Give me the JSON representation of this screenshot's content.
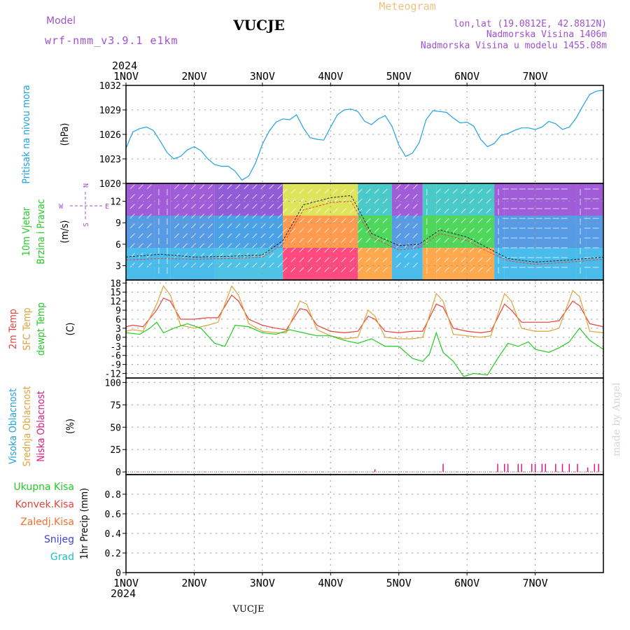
{
  "header": {
    "model_label": "Model",
    "model_name": "wrf-nmm_v3.9.1 e1km",
    "station": "VUCJE",
    "meteogram": "Meteogram",
    "lonlat": "lon,lat (19.0812E, 42.8812N)",
    "elevation": "Nadmorska Visina 1406m",
    "model_elevation": "Nadmorska Visina u modelu 1455.08m",
    "year_top": "2024",
    "year_bottom": "2024",
    "footer_station": "VUCJE",
    "credit": "made by Angel"
  },
  "colors": {
    "pressure": "#1fa2e0",
    "temp2m": "#e8423a",
    "sfc": "#dda33a",
    "dewpt": "#22cc22",
    "cloud_low": "#e0157f",
    "cloud_mid": "#f0b048",
    "cloud_high": "#1fa2e0",
    "model_text": "#a050d0",
    "meteogram_text": "#f0c080"
  },
  "wind_direction_key": {
    "n": "N",
    "s": "S",
    "w": "W",
    "e": "E"
  },
  "chart_data": [
    {
      "id": "pressure",
      "type": "line",
      "ylabel_lines": [
        "Pritisak na nivou mora",
        "(hPa)"
      ],
      "ylabel_colors": [
        "#1fa2e0",
        "#000000"
      ],
      "ylim": [
        1020,
        1032
      ],
      "yticks": [
        1020,
        1023,
        1026,
        1029,
        1032
      ],
      "x_categories": [
        "1NOV",
        "2NOV",
        "3NOV",
        "4NOV",
        "5NOV",
        "6NOV",
        "7NOV"
      ],
      "grid": true,
      "series": [
        {
          "color": "#1fa2e0",
          "x_days": [
            0,
            0.1,
            0.2,
            0.3,
            0.4,
            0.5,
            0.6,
            0.7,
            0.8,
            0.9,
            1.0,
            1.1,
            1.2,
            1.3,
            1.4,
            1.5,
            1.6,
            1.7,
            1.8,
            1.9,
            2.0,
            2.1,
            2.2,
            2.3,
            2.4,
            2.5,
            2.6,
            2.7,
            2.8,
            2.9,
            3.0,
            3.1,
            3.2,
            3.3,
            3.4,
            3.5,
            3.6,
            3.7,
            3.8,
            3.9,
            4.0,
            4.1,
            4.2,
            4.3,
            4.4,
            4.5,
            4.6,
            4.7,
            4.8,
            4.9,
            5.0,
            5.1,
            5.2,
            5.3,
            5.4,
            5.5,
            5.6,
            5.7,
            5.8,
            5.9,
            6.0,
            6.1,
            6.2,
            6.3,
            6.4,
            6.5,
            6.6,
            6.7,
            6.8,
            6.9,
            7.0
          ],
          "values": [
            1024.3,
            1026.3,
            1026.7,
            1026.9,
            1026.5,
            1025.2,
            1023.8,
            1023.0,
            1023.3,
            1024.1,
            1024.5,
            1024.0,
            1023.0,
            1022.3,
            1022.1,
            1022.1,
            1021.5,
            1020.4,
            1020.9,
            1022.5,
            1024.8,
            1026.4,
            1027.5,
            1027.9,
            1027.8,
            1028.4,
            1026.8,
            1025.6,
            1025.4,
            1025.3,
            1026.9,
            1028.4,
            1029.0,
            1029.1,
            1028.8,
            1027.6,
            1027.2,
            1027.9,
            1028.3,
            1027.0,
            1024.7,
            1023.3,
            1023.7,
            1025.0,
            1027.8,
            1028.9,
            1028.8,
            1028.7,
            1028.0,
            1027.4,
            1027.5,
            1027.0,
            1025.4,
            1024.5,
            1024.9,
            1025.9,
            1026.1,
            1026.5,
            1026.8,
            1026.8,
            1026.6,
            1026.9,
            1027.6,
            1027.3,
            1026.6,
            1026.9,
            1028.0,
            1029.5,
            1030.9,
            1031.3,
            1031.4
          ]
        }
      ]
    },
    {
      "id": "wind",
      "type": "heatmap",
      "ylabel_lines": [
        "10m Vjetar",
        "Brzina i Pravac",
        "(m/s)"
      ],
      "ylabel_colors": [
        "#22cc22",
        "#22cc22",
        "#000000"
      ],
      "ylim": [
        1,
        14.5
      ],
      "yticks": [
        3,
        6,
        9,
        12
      ],
      "grid": true,
      "segments": [
        {
          "x_start": 0,
          "x_end": 0.42,
          "dir": "NE",
          "speed_level": "low"
        },
        {
          "x_start": 0.42,
          "x_end": 0.65,
          "dir": "S",
          "speed_level": "low"
        },
        {
          "x_start": 0.65,
          "x_end": 1.3,
          "dir": "NE",
          "speed_level": "low"
        },
        {
          "x_start": 1.3,
          "x_end": 2.3,
          "dir": "NE",
          "speed_level": "low-mid"
        },
        {
          "x_start": 2.3,
          "x_end": 3.4,
          "dir": "SW",
          "speed_level": "high"
        },
        {
          "x_start": 3.4,
          "x_end": 3.9,
          "dir": "SW",
          "speed_level": "mid"
        },
        {
          "x_start": 3.9,
          "x_end": 4.35,
          "dir": "NE",
          "speed_level": "low"
        },
        {
          "x_start": 4.35,
          "x_end": 4.55,
          "dir": "S",
          "speed_level": "mid"
        },
        {
          "x_start": 4.55,
          "x_end": 5.4,
          "dir": "SW",
          "speed_level": "mid"
        },
        {
          "x_start": 5.4,
          "x_end": 5.55,
          "dir": "S",
          "speed_level": "low"
        },
        {
          "x_start": 5.55,
          "x_end": 6.6,
          "dir": "W",
          "speed_level": "low"
        },
        {
          "x_start": 6.6,
          "x_end": 6.75,
          "dir": "S",
          "speed_level": "low"
        },
        {
          "x_start": 6.75,
          "x_end": 7.0,
          "dir": "W",
          "speed_level": "low"
        }
      ],
      "speed_series": [
        {
          "color": "#222222",
          "x_days": [
            0,
            0.5,
            1,
            1.5,
            2,
            2.3,
            2.6,
            3,
            3.3,
            3.6,
            4,
            4.3,
            4.6,
            5,
            5.3,
            5.6,
            6,
            6.5,
            7
          ],
          "values": [
            4.2,
            4.6,
            4.2,
            4.3,
            4.5,
            6.5,
            11.5,
            12.5,
            12.8,
            7.5,
            5.8,
            6.0,
            8.0,
            7.0,
            5.5,
            4.0,
            3.5,
            3.8,
            4.2
          ]
        },
        {
          "color": "#e8423a",
          "x_days": [
            0,
            0.5,
            1,
            1.5,
            2,
            2.3,
            2.6,
            3,
            3.3,
            3.6,
            4,
            4.3,
            4.6,
            5,
            5.3,
            5.6,
            6,
            6.5,
            7
          ],
          "values": [
            3.8,
            4.0,
            3.9,
            4.0,
            4.2,
            6.0,
            10.8,
            11.8,
            12.0,
            7.0,
            5.2,
            5.5,
            7.5,
            6.5,
            5.0,
            3.7,
            3.2,
            3.5,
            3.9
          ]
        }
      ]
    },
    {
      "id": "temperature",
      "type": "line",
      "ylabel_lines": [
        "2m Temp",
        "SFC Temp",
        "dewpt Temp",
        "(C)"
      ],
      "ylabel_colors": [
        "#e8423a",
        "#dda33a",
        "#22cc22",
        "#000000"
      ],
      "ylim": [
        -13.5,
        19
      ],
      "yticks": [
        -12,
        -9,
        -6,
        -3,
        0,
        3,
        6,
        9,
        12,
        15,
        18
      ],
      "grid": true,
      "series": [
        {
          "name": "2m Temp",
          "color": "#e8423a",
          "x_days": [
            0,
            0.1,
            0.25,
            0.45,
            0.55,
            0.65,
            0.8,
            1.0,
            1.2,
            1.35,
            1.55,
            1.65,
            1.8,
            2.0,
            2.2,
            2.35,
            2.55,
            2.65,
            2.8,
            3.0,
            3.2,
            3.4,
            3.55,
            3.65,
            3.8,
            4.0,
            4.2,
            4.35,
            4.55,
            4.65,
            4.8,
            5.0,
            5.2,
            5.35,
            5.55,
            5.65,
            5.8,
            6.0,
            6.2,
            6.35,
            6.55,
            6.65,
            6.8,
            7.0
          ],
          "values": [
            3.5,
            4.0,
            3.5,
            9.0,
            13.0,
            12.0,
            6.0,
            6.0,
            6.5,
            6.5,
            14.0,
            12.0,
            6.0,
            4.0,
            3.0,
            2.5,
            9.5,
            9.0,
            4.0,
            2.0,
            1.5,
            2.0,
            7.0,
            6.0,
            2.0,
            1.5,
            2.0,
            2.0,
            11.0,
            10.0,
            3.0,
            2.0,
            1.5,
            2.0,
            11.0,
            9.0,
            5.0,
            5.0,
            5.0,
            5.5,
            12.0,
            10.5,
            4.5,
            3.5
          ]
        },
        {
          "name": "SFC Temp",
          "color": "#dda33a",
          "x_days": [
            0,
            0.1,
            0.25,
            0.45,
            0.55,
            0.65,
            0.8,
            1.0,
            1.2,
            1.35,
            1.55,
            1.65,
            1.8,
            2.0,
            2.2,
            2.35,
            2.55,
            2.65,
            2.8,
            3.0,
            3.2,
            3.4,
            3.55,
            3.65,
            3.8,
            4.0,
            4.2,
            4.35,
            4.55,
            4.65,
            4.8,
            5.0,
            5.2,
            5.35,
            5.55,
            5.65,
            5.8,
            6.0,
            6.2,
            6.35,
            6.55,
            6.65,
            6.8,
            7.0
          ],
          "values": [
            2.0,
            2.5,
            2.0,
            11.0,
            17.0,
            14.0,
            4.0,
            3.0,
            4.0,
            5.0,
            17.0,
            14.0,
            4.5,
            2.0,
            1.5,
            1.5,
            12.0,
            11.0,
            2.5,
            0.5,
            -0.5,
            0.0,
            9.0,
            7.0,
            0.0,
            -0.5,
            -0.5,
            0.0,
            14.5,
            12.0,
            1.0,
            0.5,
            0.0,
            0.5,
            14.5,
            12.0,
            3.0,
            2.0,
            2.0,
            3.0,
            15.5,
            13.5,
            2.0,
            1.5
          ]
        },
        {
          "name": "dewpt Temp",
          "color": "#22cc22",
          "x_days": [
            0,
            0.2,
            0.35,
            0.45,
            0.55,
            0.7,
            0.9,
            1.1,
            1.3,
            1.45,
            1.6,
            1.8,
            2.0,
            2.2,
            2.4,
            2.6,
            2.8,
            3.0,
            3.2,
            3.4,
            3.6,
            3.8,
            4.0,
            4.2,
            4.35,
            4.45,
            4.55,
            4.65,
            4.8,
            4.95,
            5.1,
            5.3,
            5.45,
            5.6,
            5.75,
            5.9,
            6.0,
            6.2,
            6.35,
            6.5,
            6.65,
            6.8,
            7.0
          ],
          "values": [
            1.5,
            1.0,
            3.0,
            5.0,
            1.5,
            3.0,
            4.5,
            3.0,
            -2.0,
            -3.0,
            4.0,
            3.5,
            1.5,
            1.0,
            2.5,
            1.5,
            0.5,
            0.5,
            -1.0,
            -2.0,
            -0.5,
            -3.0,
            -3.0,
            -7.0,
            -8.0,
            -5.5,
            1.5,
            -5.0,
            -8.0,
            -13.0,
            -12.0,
            -12.5,
            -7.0,
            -2.0,
            -3.0,
            -1.5,
            -4.0,
            -5.0,
            -3.5,
            -1.5,
            3.0,
            -1.0,
            -4.0
          ]
        }
      ]
    },
    {
      "id": "cloud",
      "type": "bar",
      "ylabel_lines": [
        "Visoka Oblacnost",
        "Srednja Oblacnost",
        "Niska Oblacnost",
        "(%)"
      ],
      "ylabel_colors": [
        "#1fa2e0",
        "#dda33a",
        "#e0157f",
        "#000000"
      ],
      "ylim": [
        -3,
        105
      ],
      "yticks": [
        0,
        25,
        50,
        75,
        100
      ],
      "grid": true,
      "series": [
        {
          "name": "Niska Oblacnost",
          "color": "#e0157f",
          "x_days": [
            3.65,
            4.65,
            5.45,
            5.55,
            5.6,
            5.75,
            5.8,
            5.95,
            6.0,
            6.1,
            6.15,
            6.3,
            6.4,
            6.5,
            6.62,
            6.77,
            6.87,
            6.93
          ],
          "values": [
            3,
            9,
            9,
            9,
            9,
            9,
            9,
            9,
            9,
            9,
            9,
            9,
            9,
            9,
            9,
            5,
            9,
            9
          ]
        }
      ]
    },
    {
      "id": "precip",
      "type": "bar",
      "ylabel_lines": [
        "1hr Precip (mm)"
      ],
      "ylabel_colors": [
        "#000000"
      ],
      "ylim": [
        0,
        1.0
      ],
      "yticks": [
        0,
        0.2,
        0.4,
        0.6,
        0.8
      ],
      "grid": true,
      "legend": [
        {
          "name": "Ukupna Kisa",
          "color": "#22cc22"
        },
        {
          "name": "Konvek.Kisa",
          "color": "#e8423a"
        },
        {
          "name": "Zaledj.Kisa",
          "color": "#f07030"
        },
        {
          "name": "Snijeg",
          "color": "#4040e0"
        },
        {
          "name": "Grad",
          "color": "#20c0c0"
        }
      ],
      "series": []
    }
  ]
}
